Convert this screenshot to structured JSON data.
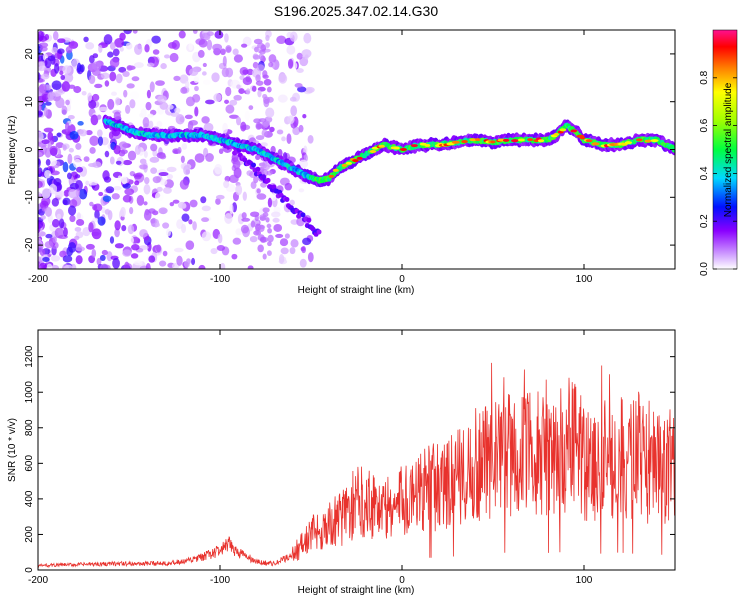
{
  "chart_data": [
    {
      "type": "heatmap",
      "title": "S196.2025.347.02.14.G30",
      "xlabel": "Height of straight line (km)",
      "ylabel": "Frequency (Hz)",
      "xlim": [
        -200,
        150
      ],
      "ylim": [
        -25,
        25
      ],
      "xticks": [
        -200,
        -100,
        0,
        100
      ],
      "xtick_labels": [
        "-200",
        "-100",
        "0",
        "100"
      ],
      "yticks": [
        -20,
        -10,
        0,
        10,
        20
      ],
      "ytick_labels": [
        "-20",
        "-10",
        "0",
        "10",
        "20"
      ],
      "ridge": {
        "x": [
          -163,
          -150,
          -140,
          -130,
          -120,
          -110,
          -100,
          -90,
          -80,
          -70,
          -60,
          -50,
          -45,
          -40,
          -35,
          -30,
          -20,
          -10,
          0,
          10,
          20,
          30,
          40,
          50,
          60,
          70,
          80,
          85,
          90,
          95,
          100,
          110,
          120,
          130,
          140,
          150
        ],
        "y": [
          6,
          4,
          3,
          3,
          3,
          3,
          2,
          1,
          0,
          -2,
          -4,
          -6,
          -6.5,
          -6,
          -4,
          -3,
          -1,
          1,
          0,
          1,
          1,
          1.5,
          2,
          1.5,
          2,
          2,
          2,
          3,
          5,
          4,
          2,
          1,
          1,
          2,
          2,
          0
        ]
      },
      "colorbar": {
        "label": "Normalized spectral amplitude",
        "range": [
          0,
          1
        ],
        "ticks": [
          0.0,
          0.2,
          0.4,
          0.6,
          0.8
        ],
        "tick_labels": [
          "0.0",
          "0.2",
          "0.4",
          "0.6",
          "0.8"
        ]
      }
    },
    {
      "type": "line",
      "xlabel": "Height of straight line (km)",
      "ylabel": "SNR (10 * v/v)",
      "xlim": [
        -200,
        150
      ],
      "ylim": [
        0,
        1350
      ],
      "xticks": [
        -200,
        -100,
        0,
        100
      ],
      "xtick_labels": [
        "-200",
        "-100",
        "0",
        "100"
      ],
      "yticks": [
        0,
        200,
        400,
        600,
        800,
        1000,
        1200
      ],
      "ytick_labels": [
        "0",
        "200",
        "400",
        "600",
        "800",
        "1000",
        "1200"
      ],
      "series": [
        {
          "name": "SNR",
          "color": "#e8322d",
          "x": [
            -200,
            -180,
            -160,
            -140,
            -120,
            -110,
            -100,
            -95,
            -90,
            -80,
            -70,
            -65,
            -60,
            -55,
            -50,
            -45,
            -40,
            -35,
            -30,
            -25,
            -20,
            -15,
            -10,
            -5,
            0,
            5,
            10,
            15,
            20,
            25,
            30,
            35,
            40,
            45,
            50,
            55,
            60,
            65,
            70,
            75,
            80,
            85,
            90,
            95,
            100,
            105,
            110,
            115,
            120,
            125,
            130,
            135,
            140,
            145,
            150
          ],
          "y": [
            25,
            30,
            35,
            35,
            45,
            70,
            110,
            140,
            100,
            45,
            35,
            60,
            90,
            140,
            200,
            230,
            250,
            280,
            330,
            380,
            400,
            380,
            340,
            350,
            380,
            420,
            440,
            460,
            470,
            480,
            520,
            560,
            600,
            620,
            640,
            650,
            640,
            620,
            660,
            680,
            640,
            640,
            720,
            720,
            620,
            580,
            620,
            640,
            660,
            600,
            640,
            580,
            580,
            560,
            580
          ]
        }
      ]
    }
  ]
}
